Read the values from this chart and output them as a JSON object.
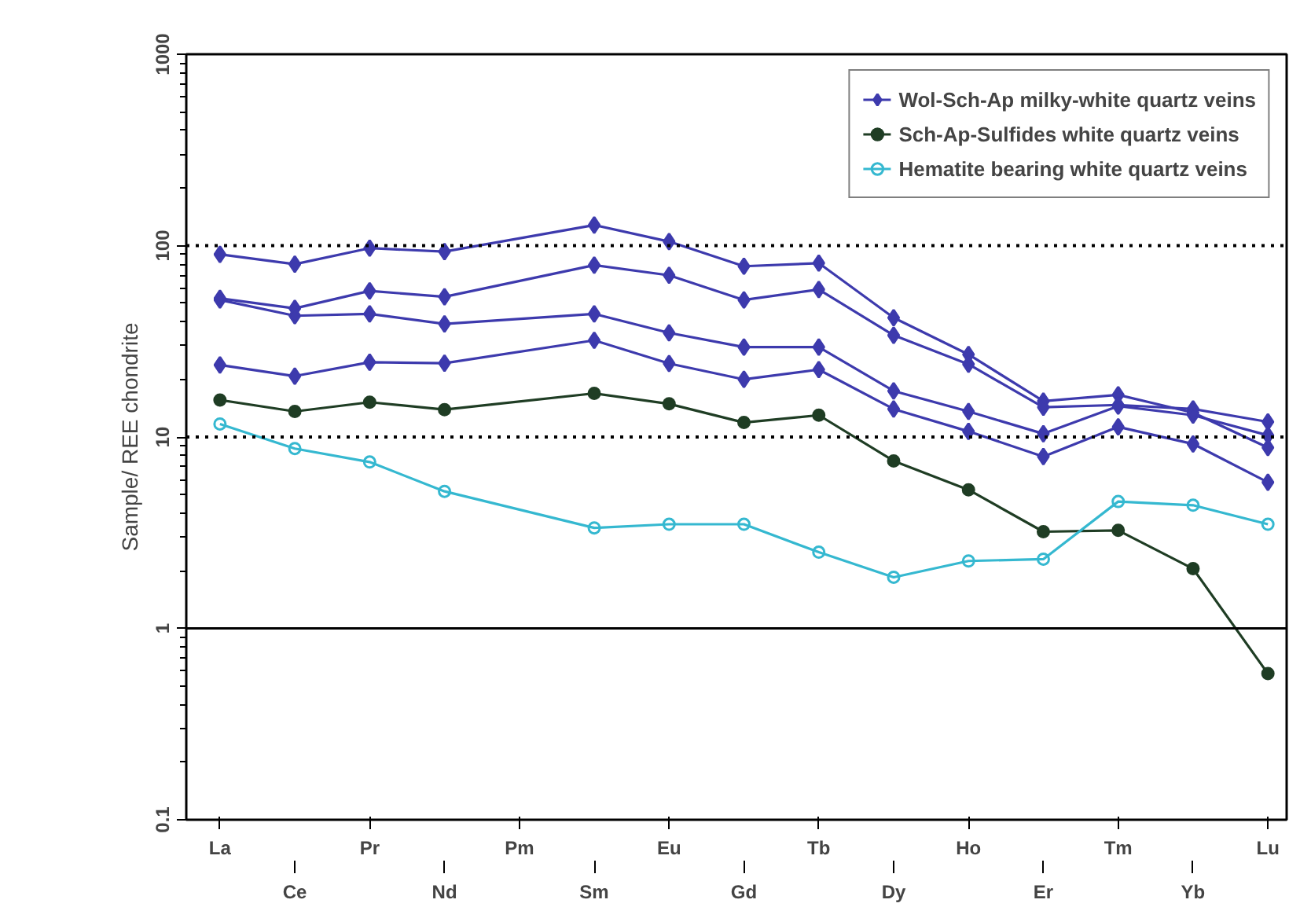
{
  "chart_data": {
    "type": "line",
    "ylabel": "Sample/ REE chondrite",
    "log": true,
    "grid": false,
    "legend": "top right",
    "categories": [
      "La",
      "Ce",
      "Pr",
      "Nd",
      "Pm",
      "Sm",
      "Eu",
      "Gd",
      "Tb",
      "Dy",
      "Ho",
      "Er",
      "Tm",
      "Yb",
      "Lu"
    ],
    "ylim": [
      0.1,
      1000
    ],
    "yticks": [
      0.1,
      1,
      10,
      100,
      1000
    ],
    "ref_lines": [
      {
        "axis": "y",
        "value": 100,
        "line_style": "dotted"
      },
      {
        "axis": "y",
        "value": 10,
        "line_style": "dotted"
      },
      {
        "axis": "y",
        "value": 1,
        "line_style": "solid"
      }
    ],
    "series": [
      {
        "name": "Wol-Sch-Ap milky-white quartz veins",
        "color": "#3d3aad",
        "marker": "diamond",
        "values": [
          90,
          80,
          97,
          93,
          null,
          128,
          105,
          78,
          81,
          42,
          27,
          15.4,
          16.6,
          13.4,
          8.8
        ]
      },
      {
        "color": "#3d3aad",
        "marker": "diamond",
        "values": [
          53,
          47,
          58,
          54,
          null,
          79,
          70,
          52,
          59,
          34,
          24,
          14.3,
          14.7,
          14,
          12
        ]
      },
      {
        "color": "#3d3aad",
        "marker": "diamond",
        "values": [
          52,
          43,
          44,
          39,
          null,
          44,
          35,
          29.5,
          29.5,
          17.4,
          13.6,
          10.4,
          14.5,
          13,
          10.2
        ]
      },
      {
        "color": "#3d3aad",
        "marker": "diamond",
        "values": [
          23.8,
          20.8,
          24.6,
          24.3,
          null,
          32,
          24.2,
          20,
          22.5,
          14,
          10.7,
          7.9,
          11.3,
          9.2,
          5.8
        ]
      },
      {
        "name": "Sch-Ap-Sulfides white quartz veins",
        "color": "#1f3d24",
        "marker": "circle",
        "values": [
          15.6,
          13.6,
          15.2,
          13.9,
          null,
          16.9,
          14.9,
          11.9,
          13,
          7.5,
          5.3,
          3.2,
          3.25,
          2.05,
          0.58
        ]
      },
      {
        "name": "Hematite bearing white quartz veins",
        "color": "#35b8d0",
        "marker": "circle_open",
        "values": [
          11.7,
          8.7,
          7.4,
          5.2,
          null,
          3.35,
          3.5,
          3.5,
          2.5,
          1.85,
          2.25,
          2.3,
          4.6,
          4.4,
          3.5
        ]
      }
    ]
  }
}
